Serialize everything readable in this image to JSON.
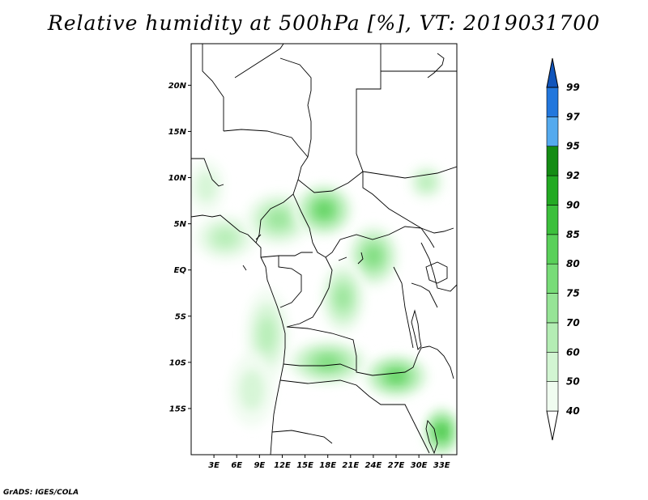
{
  "title": "Relative humidity at 500hPa [%], VT: 2019031700",
  "credit": "GrADS: IGES/COLA",
  "map": {
    "lon_range": [
      0,
      35
    ],
    "lat_range": [
      -20,
      24.5
    ],
    "lat_ticks": [
      {
        "value": 20,
        "label": "20N"
      },
      {
        "value": 15,
        "label": "15N"
      },
      {
        "value": 10,
        "label": "10N"
      },
      {
        "value": 5,
        "label": "5N"
      },
      {
        "value": 0,
        "label": "EQ"
      },
      {
        "value": -5,
        "label": "5S"
      },
      {
        "value": -10,
        "label": "10S"
      },
      {
        "value": -15,
        "label": "15S"
      }
    ],
    "lon_ticks": [
      {
        "value": 3,
        "label": "3E"
      },
      {
        "value": 6,
        "label": "6E"
      },
      {
        "value": 9,
        "label": "9E"
      },
      {
        "value": 12,
        "label": "12E"
      },
      {
        "value": 15,
        "label": "15E"
      },
      {
        "value": 18,
        "label": "18E"
      },
      {
        "value": 21,
        "label": "21E"
      },
      {
        "value": 24,
        "label": "24E"
      },
      {
        "value": 27,
        "label": "27E"
      },
      {
        "value": 30,
        "label": "30E"
      },
      {
        "value": 33,
        "label": "33E"
      }
    ]
  },
  "colorbar": {
    "levels": [
      {
        "label": "40",
        "color": "#f0fcf0"
      },
      {
        "label": "50",
        "color": "#d2f5d2"
      },
      {
        "label": "60",
        "color": "#b4edb4"
      },
      {
        "label": "70",
        "color": "#96e496"
      },
      {
        "label": "75",
        "color": "#78dc78"
      },
      {
        "label": "80",
        "color": "#5ad05a"
      },
      {
        "label": "85",
        "color": "#3cc03c"
      },
      {
        "label": "90",
        "color": "#23aa23"
      },
      {
        "label": "92",
        "color": "#148c14"
      },
      {
        "label": "95",
        "color": "#55aaee"
      },
      {
        "label": "97",
        "color": "#2277dd"
      },
      {
        "label": "99",
        "color": "#1155bb"
      }
    ],
    "below_color": "#ffffff",
    "above_color": "#1155bb"
  },
  "humid_regions": [
    {
      "lon": 4.5,
      "lat": 3.5,
      "rx": 4.2,
      "ry": 2.6,
      "level": 2
    },
    {
      "lon": 11.5,
      "lat": 5.5,
      "rx": 4.5,
      "ry": 3.0,
      "level": 3
    },
    {
      "lon": 17.5,
      "lat": 6.5,
      "rx": 4.0,
      "ry": 3.0,
      "level": 5
    },
    {
      "lon": 24.0,
      "lat": 1.5,
      "rx": 3.5,
      "ry": 3.5,
      "level": 4
    },
    {
      "lon": 20.0,
      "lat": -3.0,
      "rx": 3.0,
      "ry": 4.0,
      "level": 3
    },
    {
      "lon": 31.0,
      "lat": 9.5,
      "rx": 2.5,
      "ry": 2.0,
      "level": 2
    },
    {
      "lon": 18.0,
      "lat": -10.0,
      "rx": 5.5,
      "ry": 2.5,
      "level": 4
    },
    {
      "lon": 27.0,
      "lat": -11.5,
      "rx": 4.5,
      "ry": 2.5,
      "level": 5
    },
    {
      "lon": 33.0,
      "lat": -17.5,
      "rx": 2.5,
      "ry": 2.8,
      "level": 6
    },
    {
      "lon": 10.0,
      "lat": -7.0,
      "rx": 3.0,
      "ry": 5.0,
      "level": 2
    },
    {
      "lon": 8.0,
      "lat": -13.0,
      "rx": 3.0,
      "ry": 4.0,
      "level": 1
    },
    {
      "lon": 2.0,
      "lat": 9.0,
      "rx": 2.5,
      "ry": 3.0,
      "level": 1
    }
  ]
}
